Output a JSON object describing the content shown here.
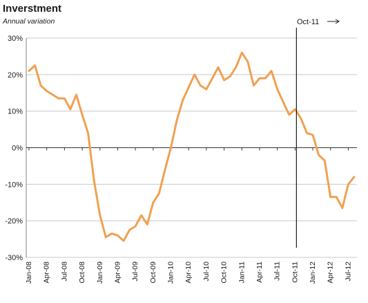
{
  "chart_data": {
    "type": "line",
    "title": "Inverstment",
    "subtitle": "Annual variation",
    "xlabel": "",
    "ylabel": "",
    "ylim": [
      -30,
      30
    ],
    "y_ticks": [
      "30%",
      "20%",
      "10%",
      "0%",
      "-10%",
      "-20%",
      "-30%"
    ],
    "y_tick_values": [
      30,
      20,
      10,
      0,
      -10,
      -20,
      -30
    ],
    "x_tick_labels": [
      "Jan-08",
      "Apr-08",
      "Jul-08",
      "Oct-08",
      "Jan-09",
      "Apr-09",
      "Jul-09",
      "Oct-09",
      "Jan-10",
      "Apr-10",
      "Jul-10",
      "Oct-10",
      "Jan-11",
      "Apr-11",
      "Jul-11",
      "Oct-11",
      "Jan-12",
      "Apr-12",
      "Jul-12"
    ],
    "grid": "horizontal",
    "annotation": {
      "label": "Oct-11",
      "at_month": "Oct-11"
    },
    "series": [
      {
        "color": "#f0a050",
        "x": [
          "Jan-08",
          "Feb-08",
          "Mar-08",
          "Apr-08",
          "May-08",
          "Jun-08",
          "Jul-08",
          "Aug-08",
          "Sep-08",
          "Oct-08",
          "Nov-08",
          "Dec-08",
          "Jan-09",
          "Feb-09",
          "Mar-09",
          "Apr-09",
          "May-09",
          "Jun-09",
          "Jul-09",
          "Aug-09",
          "Sep-09",
          "Oct-09",
          "Nov-09",
          "Dec-09",
          "Jan-10",
          "Feb-10",
          "Mar-10",
          "Apr-10",
          "May-10",
          "Jun-10",
          "Jul-10",
          "Aug-10",
          "Sep-10",
          "Oct-10",
          "Nov-10",
          "Dec-10",
          "Jan-11",
          "Feb-11",
          "Mar-11",
          "Apr-11",
          "May-11",
          "Jun-11",
          "Jul-11",
          "Aug-11",
          "Sep-11",
          "Oct-11",
          "Nov-11",
          "Dec-11",
          "Jan-12",
          "Feb-12",
          "Mar-12",
          "Apr-12",
          "May-12",
          "Jun-12",
          "Jul-12",
          "Aug-12"
        ],
        "values": [
          21,
          22.5,
          17,
          15.5,
          14.5,
          13.5,
          13.5,
          10.5,
          14.5,
          9,
          4,
          -9,
          -18.5,
          -24.5,
          -23.5,
          -24,
          -25.5,
          -22.5,
          -21.5,
          -18.5,
          -21,
          -15,
          -12.5,
          -6,
          0,
          7.5,
          13,
          16.5,
          20,
          17,
          16,
          19,
          22,
          18.5,
          19.5,
          22,
          26,
          23.5,
          17,
          19,
          19,
          21,
          16,
          12.5,
          9,
          10.5,
          8,
          4,
          3.5,
          -2,
          -3.5,
          -13.5,
          -13.5,
          -16.5,
          -10,
          -8
        ]
      }
    ]
  }
}
